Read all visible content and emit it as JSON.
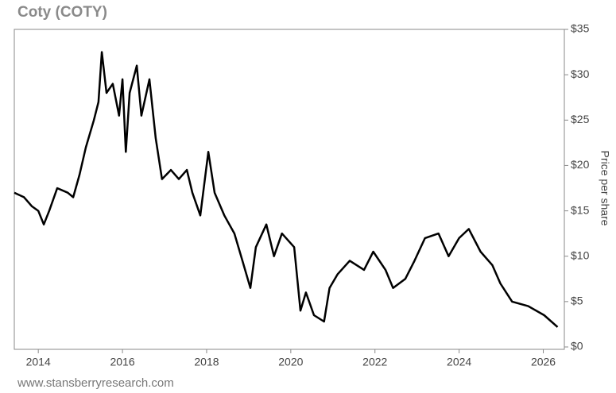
{
  "chart_data": {
    "type": "line",
    "title": "Coty (COTY)",
    "y_label": "Price per share",
    "source": "www.stansberryresearch.com",
    "x": [
      2013.43,
      2013.66,
      2013.85,
      2014.0,
      2014.13,
      2014.26,
      2014.45,
      2014.7,
      2014.83,
      2014.98,
      2015.13,
      2015.32,
      2015.43,
      2015.51,
      2015.62,
      2015.77,
      2015.92,
      2016.0,
      2016.08,
      2016.17,
      2016.34,
      2016.45,
      2016.64,
      2016.79,
      2016.94,
      2017.15,
      2017.34,
      2017.53,
      2017.66,
      2017.85,
      2018.04,
      2018.19,
      2018.42,
      2018.66,
      2018.85,
      2019.04,
      2019.17,
      2019.42,
      2019.6,
      2019.79,
      2020.08,
      2020.23,
      2020.36,
      2020.55,
      2020.79,
      2020.92,
      2021.11,
      2021.4,
      2021.74,
      2021.96,
      2022.25,
      2022.43,
      2022.72,
      2022.94,
      2023.19,
      2023.51,
      2023.75,
      2024.0,
      2024.23,
      2024.51,
      2024.79,
      2024.98,
      2025.26,
      2025.64,
      2026.02,
      2026.34
    ],
    "series": [
      {
        "name": "COTY",
        "color": "#000000",
        "values": [
          17,
          16.5,
          15.5,
          15,
          13.5,
          15,
          17.5,
          17,
          16.5,
          19,
          22,
          25,
          27,
          32.5,
          28,
          29,
          25.5,
          29.5,
          21.5,
          28,
          31,
          25.5,
          29.5,
          23,
          18.5,
          19.5,
          18.5,
          19.5,
          17,
          14.5,
          21.5,
          17,
          14.5,
          12.5,
          9.5,
          6.5,
          11,
          13.5,
          10,
          12.5,
          11,
          4,
          6,
          3.5,
          2.8,
          6.5,
          8,
          9.5,
          8.5,
          10.5,
          8.5,
          6.5,
          7.5,
          9.5,
          12,
          12.5,
          10,
          12,
          13,
          10.5,
          9,
          7,
          5,
          4.5,
          3.5,
          2.2
        ]
      }
    ],
    "xlim": [
      2013.43,
      2026.5
    ],
    "xticks": [
      2014,
      2016,
      2018,
      2020,
      2022,
      2024,
      2026
    ],
    "ylim": [
      0,
      35
    ],
    "yticks": [
      {
        "value": 0,
        "label": "$0"
      },
      {
        "value": 5,
        "label": "$5"
      },
      {
        "value": 10,
        "label": "$10"
      },
      {
        "value": 15,
        "label": "$15"
      },
      {
        "value": 20,
        "label": "$20"
      },
      {
        "value": 25,
        "label": "$25"
      },
      {
        "value": 30,
        "label": "$30"
      },
      {
        "value": 35,
        "label": "$35"
      }
    ]
  }
}
